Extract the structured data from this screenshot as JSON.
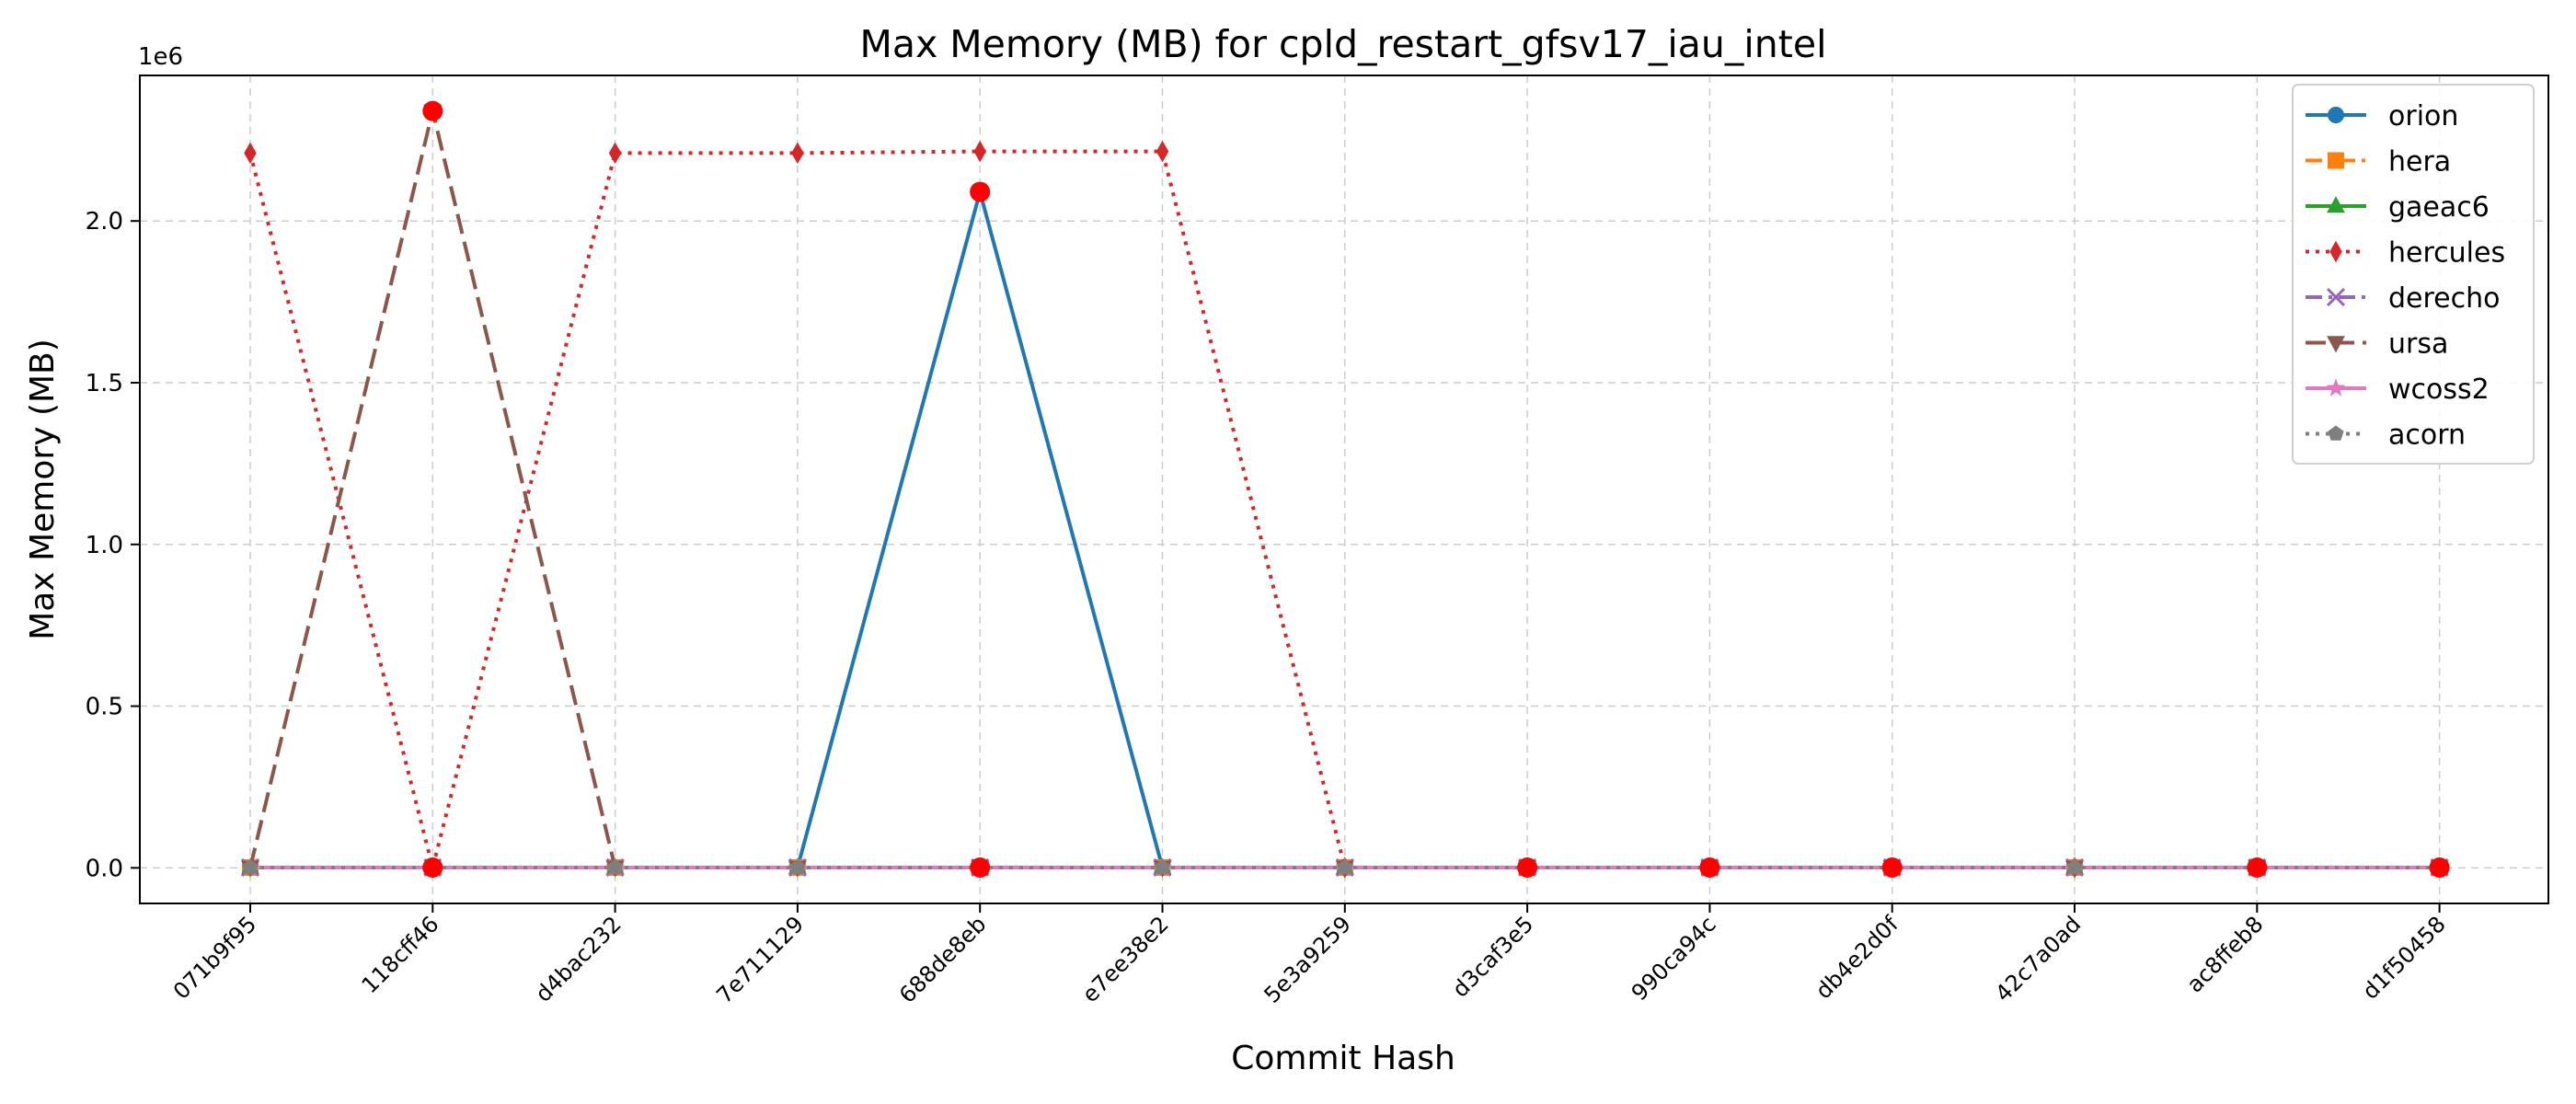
{
  "chart_data": {
    "type": "line",
    "title": "Max Memory (MB) for cpld_restart_gfsv17_iau_intel",
    "xlabel": "Commit Hash",
    "ylabel": "Max Memory (MB)",
    "y_scale_label": "1e6",
    "ylim": [
      -110000,
      2450000
    ],
    "yticks": [
      0.0,
      0.5,
      1.0,
      1.5,
      2.0
    ],
    "ytick_labels": [
      "0.0",
      "0.5",
      "1.0",
      "1.5",
      "2.0"
    ],
    "grid": true,
    "legend_position": "top-right",
    "categories": [
      "071b9f95",
      "118cff46",
      "d4bac232",
      "7e711129",
      "688de8eb",
      "e7ee38e2",
      "5e3a9259",
      "d3caf3e5",
      "990ca94c",
      "db4e2d0f",
      "42c7a0ad",
      "ac8ffeb8",
      "d1f50458"
    ],
    "series": [
      {
        "name": "orion",
        "color": "#1f77b4",
        "marker": "circle",
        "linestyle": "solid",
        "values": [
          1000,
          1000,
          1000,
          1000,
          2090000,
          1000,
          1000,
          1000,
          1000,
          1000,
          1000,
          1000,
          1000
        ]
      },
      {
        "name": "hera",
        "color": "#ff7f0e",
        "marker": "square",
        "linestyle": "dashdot",
        "values": [
          1000,
          1000,
          1000,
          1000,
          1000,
          1000,
          1000,
          1000,
          1000,
          1000,
          1000,
          1000,
          1000
        ]
      },
      {
        "name": "gaeac6",
        "color": "#2ca02c",
        "marker": "triangle-up",
        "linestyle": "solid",
        "values": [
          1000,
          1000,
          1000,
          1000,
          1000,
          1000,
          1000,
          1000,
          1000,
          1000,
          1000,
          1000,
          1000
        ]
      },
      {
        "name": "hercules",
        "color": "#d62728",
        "marker": "thin-diamond",
        "linestyle": "dotted",
        "values": [
          2210000,
          1000,
          2210000,
          2210000,
          2215000,
          2215000,
          1000,
          1000,
          1000,
          1000,
          1000,
          1000,
          1000
        ]
      },
      {
        "name": "derecho",
        "color": "#9467bd",
        "marker": "x",
        "linestyle": "dashdot",
        "values": [
          1000,
          1000,
          1000,
          1000,
          1000,
          1000,
          1000,
          1000,
          1000,
          1000,
          1000,
          1000,
          1000
        ]
      },
      {
        "name": "ursa",
        "color": "#8c564b",
        "marker": "triangle-down",
        "linestyle": "dashed",
        "values": [
          1000,
          2340000,
          1000,
          1000,
          1000,
          1000,
          1000,
          1000,
          1000,
          1000,
          1000,
          1000,
          1000
        ]
      },
      {
        "name": "wcoss2",
        "color": "#e377c2",
        "marker": "star",
        "linestyle": "solid",
        "values": [
          1000,
          1000,
          1000,
          1000,
          1000,
          1000,
          1000,
          1000,
          1000,
          1000,
          1000,
          1000,
          1000
        ]
      },
      {
        "name": "acorn",
        "color": "#7f7f7f",
        "marker": "pentagon",
        "linestyle": "dotted",
        "values": [
          1000,
          1000,
          1000,
          1000,
          1000,
          1000,
          1000,
          1000,
          1000,
          1000,
          1000,
          1000,
          1000
        ]
      }
    ],
    "highlight_color": "#ff0000",
    "highlights": [
      {
        "x": "118cff46",
        "y": 2340000
      },
      {
        "x": "688de8eb",
        "y": 2090000
      },
      {
        "x": "118cff46",
        "y": 1000
      },
      {
        "x": "688de8eb",
        "y": 1000
      },
      {
        "x": "d3caf3e5",
        "y": 1000
      },
      {
        "x": "990ca94c",
        "y": 1000
      },
      {
        "x": "db4e2d0f",
        "y": 1000
      },
      {
        "x": "ac8ffeb8",
        "y": 1000
      },
      {
        "x": "d1f50458",
        "y": 1000
      }
    ]
  }
}
